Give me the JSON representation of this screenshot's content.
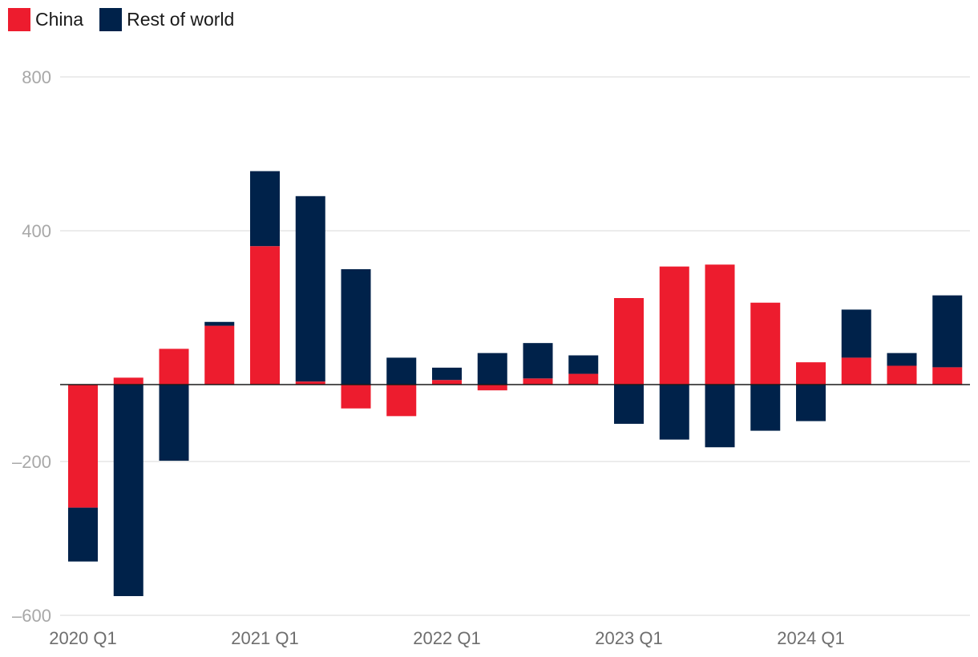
{
  "colors": {
    "china": "#ed1c2e",
    "rest": "#00224a",
    "grid": "#d9d9d9",
    "zero": "#1a1a1a"
  },
  "legend": [
    {
      "label": "China",
      "color": "#ed1c2e"
    },
    {
      "label": "Rest of world",
      "color": "#00224a"
    }
  ],
  "chart_data": {
    "type": "bar",
    "stacked": true,
    "categories": [
      "2020 Q1",
      "2020 Q2",
      "2020 Q3",
      "2020 Q4",
      "2021 Q1",
      "2021 Q2",
      "2021 Q3",
      "2021 Q4",
      "2022 Q1",
      "2022 Q2",
      "2022 Q3",
      "2022 Q4",
      "2023 Q1",
      "2023 Q2",
      "2023 Q3",
      "2023 Q4",
      "2024 Q1",
      "2024 Q2",
      "2024 Q3",
      "2024 Q4"
    ],
    "series": [
      {
        "name": "China",
        "values": [
          -320,
          18,
          93,
          153,
          360,
          8,
          -62,
          -82,
          12,
          -15,
          16,
          28,
          225,
          307,
          312,
          213,
          58,
          70,
          49,
          45
        ]
      },
      {
        "name": "Rest of world",
        "values": [
          -140,
          -550,
          -198,
          10,
          195,
          482,
          300,
          70,
          32,
          82,
          92,
          48,
          -102,
          -143,
          -163,
          -120,
          -95,
          125,
          33,
          187
        ]
      }
    ],
    "x_tick_labels": [
      "2020 Q1",
      "2021 Q1",
      "2022 Q1",
      "2023 Q1",
      "2024 Q1"
    ],
    "y_ticks": [
      800,
      400,
      -200,
      -600
    ],
    "y_tick_labels": [
      "800",
      "400",
      "–200",
      "–600"
    ],
    "ylim": [
      -600,
      800
    ],
    "title": "",
    "xlabel": "",
    "ylabel": ""
  }
}
